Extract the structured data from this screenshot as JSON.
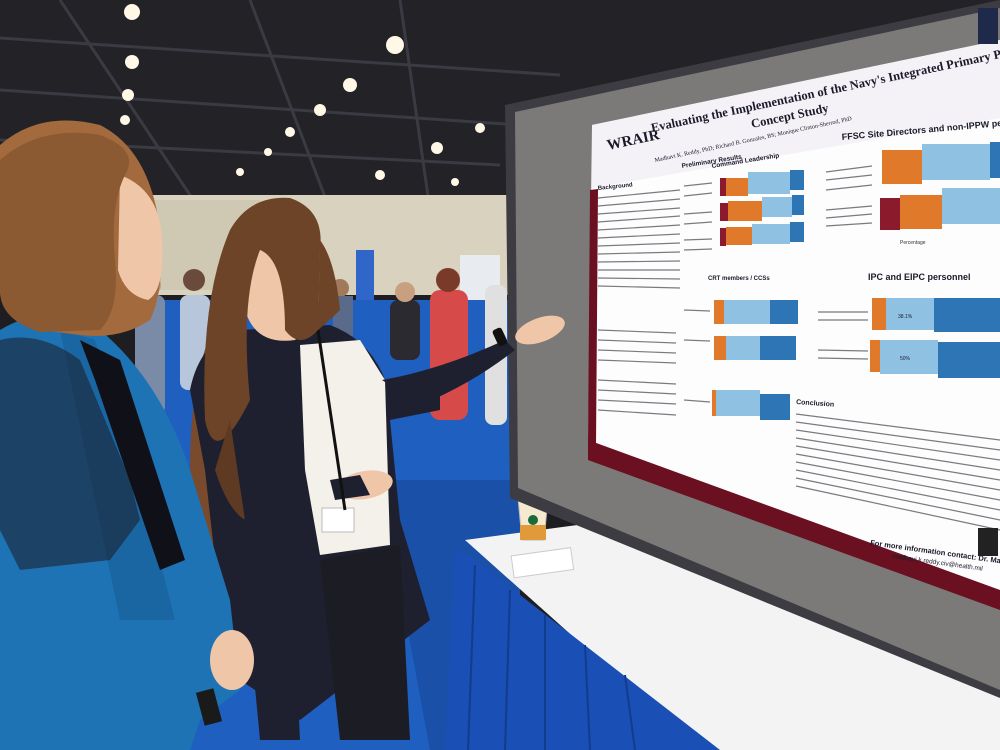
{
  "poster": {
    "logo": "WRAIR",
    "title_line1": "Evaluating the Implementation of the Navy's Integrated Primary Prevention Workforce: A Proof-of-",
    "title_line2": "Concept Study",
    "authors": "Madhavi K. Reddy, PhD; Richard B. Gonzales, BS; Monique Clinton-Sherrod, PhD",
    "section_results": "Preliminary Results",
    "section_command": "Command Leadership",
    "section_ffsc": "FFSC Site Directors and non-IPPW personnel",
    "section_ipc": "IPC and EIPC personnel",
    "section_crt": "CRT members / CCSs",
    "section_background": "Background",
    "section_conclusion": "Conclusion",
    "axis_percentage": "Percentage",
    "contact": "For more information contact: Dr. Madhavi K. Reddy",
    "contact_email": "madhavi.k.reddy.civ@health.mil",
    "chart_ipc_values": [
      "38.1%",
      "50%"
    ]
  },
  "colors": {
    "orange": "#e07a2a",
    "light_blue": "#8fc1e3",
    "blue": "#2e75b6",
    "maroon": "#8a1a2c",
    "carpet": "#1f5fc0",
    "tablecloth": "#1a4fb5"
  }
}
